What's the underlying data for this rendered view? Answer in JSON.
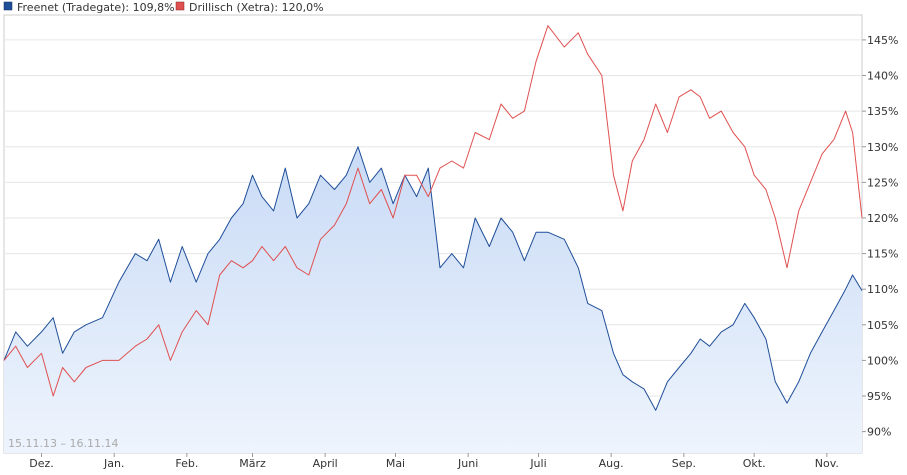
{
  "chart_data": {
    "type": "line",
    "title": "",
    "range_label": "15.11.13 – 16.11.14",
    "legend": [
      {
        "name": "Freenet (Tradegate): 109,8%",
        "color": "#1f4e99"
      },
      {
        "name": "Drillisch (Xetra): 120,0%",
        "color": "#e05050"
      }
    ],
    "colors": {
      "freenet": "#1f4e99",
      "drillisch": "#e05050",
      "area_top": "#c9dbf6",
      "area_bottom": "#eef4fd",
      "grid": "#e6e6e6"
    },
    "ylim": [
      87,
      148.5
    ],
    "y_ticks": [
      {
        "v": 90,
        "label": "90%"
      },
      {
        "v": 95,
        "label": "95%"
      },
      {
        "v": 100,
        "label": "100%"
      },
      {
        "v": 105,
        "label": "105%"
      },
      {
        "v": 110,
        "label": "110%"
      },
      {
        "v": 115,
        "label": "115%"
      },
      {
        "v": 120,
        "label": "120%"
      },
      {
        "v": 125,
        "label": "125%"
      },
      {
        "v": 130,
        "label": "130%"
      },
      {
        "v": 135,
        "label": "135%"
      },
      {
        "v": 140,
        "label": "140%"
      },
      {
        "v": 145,
        "label": "145%"
      }
    ],
    "x_ticks": [
      {
        "date": "2013-12-01",
        "label": "Dez."
      },
      {
        "date": "2014-01-01",
        "label": "Jan."
      },
      {
        "date": "2014-02-01",
        "label": "Feb."
      },
      {
        "date": "2014-03-01",
        "label": "März"
      },
      {
        "date": "2014-04-01",
        "label": "April"
      },
      {
        "date": "2014-05-01",
        "label": "Mai"
      },
      {
        "date": "2014-06-01",
        "label": "Juni"
      },
      {
        "date": "2014-07-01",
        "label": "Juli"
      },
      {
        "date": "2014-08-01",
        "label": "Aug."
      },
      {
        "date": "2014-09-01",
        "label": "Sep."
      },
      {
        "date": "2014-10-01",
        "label": "Okt."
      },
      {
        "date": "2014-11-01",
        "label": "Nov."
      }
    ],
    "xlim": [
      "2013-11-15",
      "2014-11-16"
    ],
    "series": [
      {
        "name": "Freenet (Tradegate): 109,8%",
        "key": "freenet",
        "area": true,
        "points": [
          [
            "2013-11-15",
            100
          ],
          [
            "2013-11-20",
            104
          ],
          [
            "2013-11-25",
            102
          ],
          [
            "2013-12-01",
            104
          ],
          [
            "2013-12-06",
            106
          ],
          [
            "2013-12-10",
            101
          ],
          [
            "2013-12-15",
            104
          ],
          [
            "2013-12-20",
            105
          ],
          [
            "2013-12-27",
            106
          ],
          [
            "2014-01-03",
            111
          ],
          [
            "2014-01-10",
            115
          ],
          [
            "2014-01-15",
            114
          ],
          [
            "2014-01-20",
            117
          ],
          [
            "2014-01-25",
            111
          ],
          [
            "2014-01-30",
            116
          ],
          [
            "2014-02-05",
            111
          ],
          [
            "2014-02-10",
            115
          ],
          [
            "2014-02-15",
            117
          ],
          [
            "2014-02-20",
            120
          ],
          [
            "2014-02-25",
            122
          ],
          [
            "2014-03-01",
            126
          ],
          [
            "2014-03-05",
            123
          ],
          [
            "2014-03-10",
            121
          ],
          [
            "2014-03-15",
            127
          ],
          [
            "2014-03-20",
            120
          ],
          [
            "2014-03-25",
            122
          ],
          [
            "2014-03-30",
            126
          ],
          [
            "2014-04-05",
            124
          ],
          [
            "2014-04-10",
            126
          ],
          [
            "2014-04-15",
            130
          ],
          [
            "2014-04-20",
            125
          ],
          [
            "2014-04-25",
            127
          ],
          [
            "2014-04-30",
            122
          ],
          [
            "2014-05-05",
            126
          ],
          [
            "2014-05-10",
            123
          ],
          [
            "2014-05-15",
            127
          ],
          [
            "2014-05-20",
            113
          ],
          [
            "2014-05-25",
            115
          ],
          [
            "2014-05-30",
            113
          ],
          [
            "2014-06-04",
            120
          ],
          [
            "2014-06-10",
            116
          ],
          [
            "2014-06-15",
            120
          ],
          [
            "2014-06-20",
            118
          ],
          [
            "2014-06-25",
            114
          ],
          [
            "2014-06-30",
            118
          ],
          [
            "2014-07-05",
            118
          ],
          [
            "2014-07-12",
            117
          ],
          [
            "2014-07-18",
            113
          ],
          [
            "2014-07-22",
            108
          ],
          [
            "2014-07-28",
            107
          ],
          [
            "2014-08-02",
            101
          ],
          [
            "2014-08-06",
            98
          ],
          [
            "2014-08-10",
            97
          ],
          [
            "2014-08-15",
            96
          ],
          [
            "2014-08-20",
            93
          ],
          [
            "2014-08-25",
            97
          ],
          [
            "2014-08-30",
            99
          ],
          [
            "2014-09-04",
            101
          ],
          [
            "2014-09-08",
            103
          ],
          [
            "2014-09-12",
            102
          ],
          [
            "2014-09-17",
            104
          ],
          [
            "2014-09-22",
            105
          ],
          [
            "2014-09-27",
            108
          ],
          [
            "2014-10-01",
            106
          ],
          [
            "2014-10-06",
            103
          ],
          [
            "2014-10-10",
            97
          ],
          [
            "2014-10-15",
            94
          ],
          [
            "2014-10-20",
            97
          ],
          [
            "2014-10-25",
            101
          ],
          [
            "2014-10-30",
            104
          ],
          [
            "2014-11-04",
            107
          ],
          [
            "2014-11-09",
            110
          ],
          [
            "2014-11-12",
            112
          ],
          [
            "2014-11-16",
            109.8
          ]
        ]
      },
      {
        "name": "Drillisch (Xetra): 120,0%",
        "key": "drillisch",
        "area": false,
        "points": [
          [
            "2013-11-15",
            100
          ],
          [
            "2013-11-20",
            102
          ],
          [
            "2013-11-25",
            99
          ],
          [
            "2013-12-01",
            101
          ],
          [
            "2013-12-06",
            95
          ],
          [
            "2013-12-10",
            99
          ],
          [
            "2013-12-15",
            97
          ],
          [
            "2013-12-20",
            99
          ],
          [
            "2013-12-27",
            100
          ],
          [
            "2014-01-03",
            100
          ],
          [
            "2014-01-10",
            102
          ],
          [
            "2014-01-15",
            103
          ],
          [
            "2014-01-20",
            105
          ],
          [
            "2014-01-25",
            100
          ],
          [
            "2014-01-30",
            104
          ],
          [
            "2014-02-05",
            107
          ],
          [
            "2014-02-10",
            105
          ],
          [
            "2014-02-15",
            112
          ],
          [
            "2014-02-20",
            114
          ],
          [
            "2014-02-25",
            113
          ],
          [
            "2014-03-01",
            114
          ],
          [
            "2014-03-05",
            116
          ],
          [
            "2014-03-10",
            114
          ],
          [
            "2014-03-15",
            116
          ],
          [
            "2014-03-20",
            113
          ],
          [
            "2014-03-25",
            112
          ],
          [
            "2014-03-30",
            117
          ],
          [
            "2014-04-05",
            119
          ],
          [
            "2014-04-10",
            122
          ],
          [
            "2014-04-15",
            127
          ],
          [
            "2014-04-20",
            122
          ],
          [
            "2014-04-25",
            124
          ],
          [
            "2014-04-30",
            120
          ],
          [
            "2014-05-05",
            126
          ],
          [
            "2014-05-10",
            126
          ],
          [
            "2014-05-15",
            123
          ],
          [
            "2014-05-20",
            127
          ],
          [
            "2014-05-25",
            128
          ],
          [
            "2014-05-30",
            127
          ],
          [
            "2014-06-04",
            132
          ],
          [
            "2014-06-10",
            131
          ],
          [
            "2014-06-15",
            136
          ],
          [
            "2014-06-20",
            134
          ],
          [
            "2014-06-25",
            135
          ],
          [
            "2014-06-30",
            142
          ],
          [
            "2014-07-05",
            147
          ],
          [
            "2014-07-12",
            144
          ],
          [
            "2014-07-18",
            146
          ],
          [
            "2014-07-22",
            143
          ],
          [
            "2014-07-28",
            140
          ],
          [
            "2014-08-02",
            126
          ],
          [
            "2014-08-06",
            121
          ],
          [
            "2014-08-10",
            128
          ],
          [
            "2014-08-15",
            131
          ],
          [
            "2014-08-20",
            136
          ],
          [
            "2014-08-25",
            132
          ],
          [
            "2014-08-30",
            137
          ],
          [
            "2014-09-04",
            138
          ],
          [
            "2014-09-08",
            137
          ],
          [
            "2014-09-12",
            134
          ],
          [
            "2014-09-17",
            135
          ],
          [
            "2014-09-22",
            132
          ],
          [
            "2014-09-27",
            130
          ],
          [
            "2014-10-01",
            126
          ],
          [
            "2014-10-06",
            124
          ],
          [
            "2014-10-10",
            120
          ],
          [
            "2014-10-15",
            113
          ],
          [
            "2014-10-20",
            121
          ],
          [
            "2014-10-25",
            125
          ],
          [
            "2014-10-30",
            129
          ],
          [
            "2014-11-04",
            131
          ],
          [
            "2014-11-09",
            135
          ],
          [
            "2014-11-12",
            132
          ],
          [
            "2014-11-16",
            120
          ]
        ]
      }
    ]
  }
}
